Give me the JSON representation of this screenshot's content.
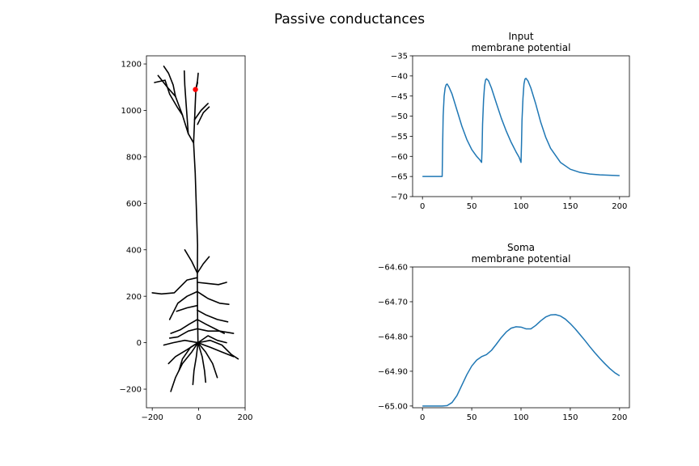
{
  "figure": {
    "title": "Passive conductances"
  },
  "chart_data": [
    {
      "type": "scatter",
      "panel": "morphology",
      "title": "",
      "xlabel": "",
      "ylabel": "",
      "xlim": [
        -225,
        200
      ],
      "ylim": [
        -280,
        1235
      ],
      "xticks": [
        -200,
        0,
        200
      ],
      "yticks": [
        -200,
        0,
        200,
        400,
        600,
        800,
        1000,
        1200
      ],
      "line_color": "#000000",
      "marker": {
        "x": -14,
        "y": 1090,
        "color": "#ff0000"
      },
      "branches": [
        [
          [
            -3,
            0
          ],
          [
            -5,
            120
          ],
          [
            -6,
            280
          ],
          [
            -5,
            420
          ],
          [
            -10,
            580
          ],
          [
            -15,
            730
          ],
          [
            -22,
            860
          ],
          [
            -16,
            1000
          ],
          [
            -12,
            1090
          ],
          [
            -5,
            1120
          ]
        ],
        [
          [
            -22,
            860
          ],
          [
            -45,
            900
          ],
          [
            -70,
            980
          ],
          [
            -100,
            1060
          ],
          [
            -135,
            1100
          ],
          [
            -175,
            1150
          ]
        ],
        [
          [
            -100,
            1060
          ],
          [
            -110,
            1110
          ],
          [
            -130,
            1160
          ],
          [
            -150,
            1190
          ]
        ],
        [
          [
            -70,
            980
          ],
          [
            -90,
            1010
          ],
          [
            -125,
            1070
          ],
          [
            -145,
            1130
          ],
          [
            -190,
            1120
          ]
        ],
        [
          [
            -45,
            900
          ],
          [
            -55,
            1040
          ],
          [
            -60,
            1110
          ],
          [
            -62,
            1170
          ]
        ],
        [
          [
            -18,
            960
          ],
          [
            10,
            1000
          ],
          [
            40,
            1030
          ]
        ],
        [
          [
            -5,
            940
          ],
          [
            20,
            990
          ],
          [
            45,
            1015
          ]
        ],
        [
          [
            -12,
            1090
          ],
          [
            -5,
            1130
          ],
          [
            -2,
            1160
          ]
        ],
        [
          [
            -6,
            300
          ],
          [
            -30,
            350
          ],
          [
            -60,
            400
          ]
        ],
        [
          [
            -6,
            300
          ],
          [
            20,
            340
          ],
          [
            45,
            370
          ]
        ],
        [
          [
            -6,
            280
          ],
          [
            -50,
            270
          ],
          [
            -105,
            215
          ],
          [
            -160,
            210
          ],
          [
            -200,
            215
          ]
        ],
        [
          [
            -6,
            260
          ],
          [
            40,
            255
          ],
          [
            85,
            250
          ],
          [
            120,
            260
          ]
        ],
        [
          [
            -6,
            220
          ],
          [
            -50,
            200
          ],
          [
            -90,
            170
          ],
          [
            -110,
            130
          ],
          [
            -125,
            100
          ]
        ],
        [
          [
            -6,
            220
          ],
          [
            40,
            190
          ],
          [
            90,
            170
          ],
          [
            130,
            165
          ]
        ],
        [
          [
            -6,
            160
          ],
          [
            -50,
            150
          ],
          [
            -95,
            135
          ]
        ],
        [
          [
            -6,
            140
          ],
          [
            30,
            120
          ],
          [
            80,
            100
          ],
          [
            125,
            90
          ]
        ],
        [
          [
            -6,
            100
          ],
          [
            -40,
            80
          ],
          [
            -80,
            55
          ],
          [
            -120,
            40
          ]
        ],
        [
          [
            -6,
            100
          ],
          [
            30,
            80
          ],
          [
            70,
            60
          ],
          [
            110,
            40
          ]
        ],
        [
          [
            -6,
            60
          ],
          [
            -45,
            50
          ],
          [
            -90,
            25
          ],
          [
            -125,
            20
          ]
        ],
        [
          [
            -6,
            60
          ],
          [
            40,
            50
          ],
          [
            90,
            50
          ],
          [
            150,
            40
          ]
        ],
        [
          [
            -3,
            0
          ],
          [
            -30,
            -40
          ],
          [
            -70,
            -90
          ],
          [
            -100,
            -150
          ],
          [
            -120,
            -210
          ]
        ],
        [
          [
            -3,
            0
          ],
          [
            -50,
            -30
          ],
          [
            -100,
            -60
          ],
          [
            -130,
            -90
          ]
        ],
        [
          [
            -3,
            0
          ],
          [
            -60,
            10
          ],
          [
            -110,
            0
          ],
          [
            -150,
            -10
          ]
        ],
        [
          [
            -3,
            0
          ],
          [
            30,
            -40
          ],
          [
            60,
            -90
          ],
          [
            80,
            -150
          ]
        ],
        [
          [
            -3,
            0
          ],
          [
            50,
            -20
          ],
          [
            100,
            -40
          ],
          [
            150,
            -60
          ]
        ],
        [
          [
            -3,
            0
          ],
          [
            50,
            10
          ],
          [
            100,
            -10
          ],
          [
            140,
            -50
          ],
          [
            170,
            -70
          ]
        ],
        [
          [
            -3,
            0
          ],
          [
            -10,
            -60
          ],
          [
            -20,
            -120
          ],
          [
            -25,
            -180
          ]
        ],
        [
          [
            -3,
            0
          ],
          [
            15,
            -60
          ],
          [
            25,
            -120
          ],
          [
            30,
            -170
          ]
        ],
        [
          [
            -3,
            0
          ],
          [
            40,
            30
          ],
          [
            80,
            10
          ],
          [
            120,
            0
          ]
        ],
        [
          [
            -3,
            0
          ],
          [
            -35,
            -20
          ],
          [
            -70,
            -70
          ],
          [
            -85,
            -120
          ]
        ]
      ]
    },
    {
      "type": "line",
      "panel": "input",
      "title": "Input\nmembrane potential",
      "xlabel": "",
      "ylabel": "",
      "xlim": [
        -10,
        210
      ],
      "ylim": [
        -70,
        -35
      ],
      "xticks": [
        0,
        50,
        100,
        150,
        200
      ],
      "yticks": [
        -70,
        -65,
        -60,
        -55,
        -50,
        -45,
        -40,
        -35
      ],
      "line_color": "#1f77b4",
      "x": [
        0,
        10,
        20,
        20.5,
        21,
        22,
        23,
        24,
        25,
        27,
        30,
        35,
        40,
        45,
        50,
        55,
        58,
        60,
        60.5,
        61,
        62,
        63,
        64,
        65,
        67,
        70,
        75,
        80,
        85,
        90,
        95,
        98,
        100,
        100.5,
        101,
        102,
        103,
        104,
        105,
        107,
        110,
        115,
        120,
        125,
        130,
        140,
        150,
        160,
        170,
        180,
        190,
        200
      ],
      "y": [
        -65,
        -65,
        -65,
        -57,
        -50,
        -45,
        -43,
        -42.2,
        -42,
        -42.8,
        -44.5,
        -48.5,
        -52.5,
        -55.8,
        -58.3,
        -60,
        -60.8,
        -61.5,
        -58,
        -52,
        -46,
        -42.5,
        -41,
        -40.7,
        -41.2,
        -43,
        -46.8,
        -50.5,
        -53.7,
        -56.5,
        -58.9,
        -60.2,
        -61.5,
        -57,
        -51,
        -45.5,
        -42,
        -40.8,
        -40.6,
        -41.2,
        -43,
        -47,
        -51.5,
        -55.2,
        -58,
        -61.5,
        -63.2,
        -64,
        -64.4,
        -64.6,
        -64.7,
        -64.8
      ]
    },
    {
      "type": "line",
      "panel": "soma",
      "title": "Soma\nmembrane potential",
      "xlabel": "",
      "ylabel": "",
      "xlim": [
        -10,
        210
      ],
      "ylim": [
        -65.005,
        -64.6
      ],
      "xticks": [
        0,
        50,
        100,
        150,
        200
      ],
      "yticks": [
        -65.0,
        -64.9,
        -64.8,
        -64.7,
        -64.6
      ],
      "line_color": "#1f77b4",
      "x": [
        0,
        10,
        20,
        25,
        30,
        35,
        40,
        45,
        50,
        55,
        60,
        65,
        70,
        75,
        80,
        85,
        90,
        95,
        100,
        105,
        110,
        115,
        120,
        125,
        130,
        135,
        140,
        145,
        150,
        155,
        160,
        165,
        170,
        175,
        180,
        185,
        190,
        195,
        200
      ],
      "y": [
        -65,
        -65,
        -65,
        -64.999,
        -64.99,
        -64.97,
        -64.94,
        -64.91,
        -64.885,
        -64.868,
        -64.858,
        -64.852,
        -64.84,
        -64.822,
        -64.803,
        -64.787,
        -64.776,
        -64.772,
        -64.773,
        -64.778,
        -64.778,
        -64.768,
        -64.755,
        -64.744,
        -64.738,
        -64.737,
        -64.741,
        -64.75,
        -64.763,
        -64.778,
        -64.795,
        -64.812,
        -64.83,
        -64.847,
        -64.863,
        -64.878,
        -64.892,
        -64.904,
        -64.913
      ]
    }
  ]
}
